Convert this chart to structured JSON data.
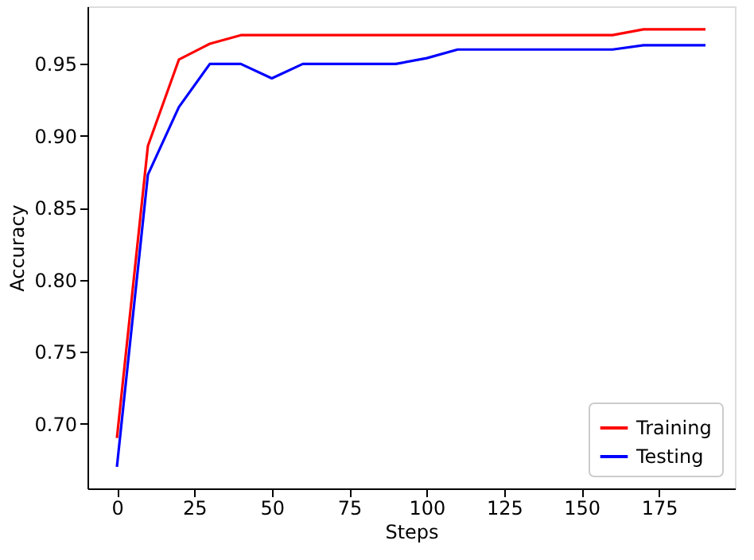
{
  "chart_data": {
    "type": "line",
    "xlabel": "Steps",
    "ylabel": "Accuracy",
    "x": [
      0,
      10,
      20,
      30,
      40,
      50,
      60,
      70,
      80,
      90,
      100,
      110,
      120,
      130,
      140,
      150,
      160,
      170,
      180,
      190
    ],
    "series": [
      {
        "name": "Training",
        "color": "#ff0000",
        "values": [
          0.69,
          0.893,
          0.953,
          0.964,
          0.97,
          0.97,
          0.97,
          0.97,
          0.97,
          0.97,
          0.97,
          0.97,
          0.97,
          0.97,
          0.97,
          0.97,
          0.97,
          0.974,
          0.974,
          0.974
        ]
      },
      {
        "name": "Testing",
        "color": "#0000ff",
        "values": [
          0.67,
          0.873,
          0.92,
          0.95,
          0.95,
          0.94,
          0.95,
          0.95,
          0.95,
          0.95,
          0.954,
          0.96,
          0.96,
          0.96,
          0.96,
          0.96,
          0.96,
          0.963,
          0.963,
          0.963
        ]
      }
    ],
    "xlim": [
      -9.5,
      199.5
    ],
    "ylim": [
      0.655,
      0.99
    ],
    "xticks": [
      0,
      25,
      50,
      75,
      100,
      125,
      150,
      175
    ],
    "yticks": [
      {
        "value": 0.7,
        "label": "0.70"
      },
      0.75,
      {
        "value": 0.8,
        "label": "0.80"
      },
      0.85,
      {
        "value": 0.9,
        "label": "0.90"
      },
      0.95
    ],
    "legend": "bottom right",
    "grid": false,
    "marker": "none",
    "line_style": "solid"
  }
}
